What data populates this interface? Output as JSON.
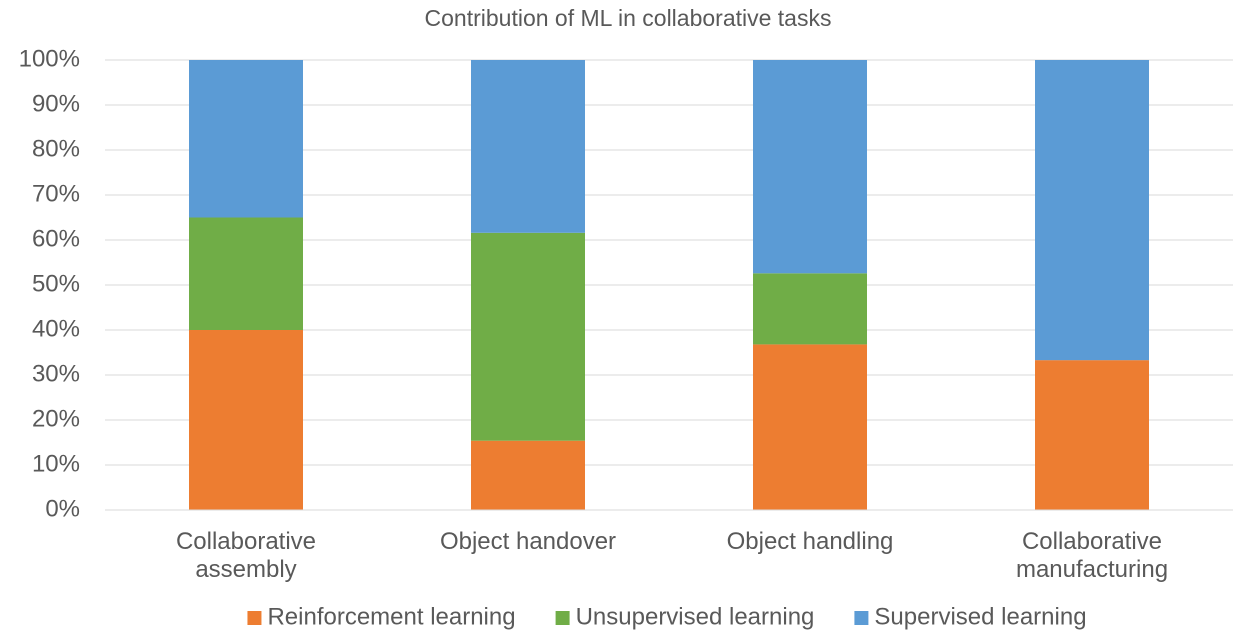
{
  "chart_data": {
    "type": "stacked_bar",
    "title": "Contribution of ML in collaborative tasks",
    "categories": [
      "Collaborative assembly",
      "Object handover",
      "Object handling",
      "Collaborative manufacturing"
    ],
    "series": [
      {
        "name": "Reinforcement learning",
        "color": "#ed7d31",
        "values": [
          40,
          15.4,
          36.8,
          33.3
        ]
      },
      {
        "name": "Unsupervised learning",
        "color": "#70ad47",
        "values": [
          25,
          46.2,
          15.8,
          0
        ]
      },
      {
        "name": "Supervised learning",
        "color": "#5b9bd5",
        "values": [
          35,
          38.4,
          47.4,
          66.7
        ]
      }
    ],
    "ylim": [
      0,
      100
    ],
    "yticks": [
      {
        "value": 0,
        "label": "0%"
      },
      {
        "value": 10,
        "label": "10%"
      },
      {
        "value": 20,
        "label": "20%"
      },
      {
        "value": 30,
        "label": "30%"
      },
      {
        "value": 40,
        "label": "40%"
      },
      {
        "value": 50,
        "label": "50%"
      },
      {
        "value": 60,
        "label": "60%"
      },
      {
        "value": 70,
        "label": "70%"
      },
      {
        "value": 80,
        "label": "80%"
      },
      {
        "value": 90,
        "label": "90%"
      },
      {
        "value": 100,
        "label": "100%"
      }
    ],
    "grid": true,
    "legend": "bottom"
  }
}
